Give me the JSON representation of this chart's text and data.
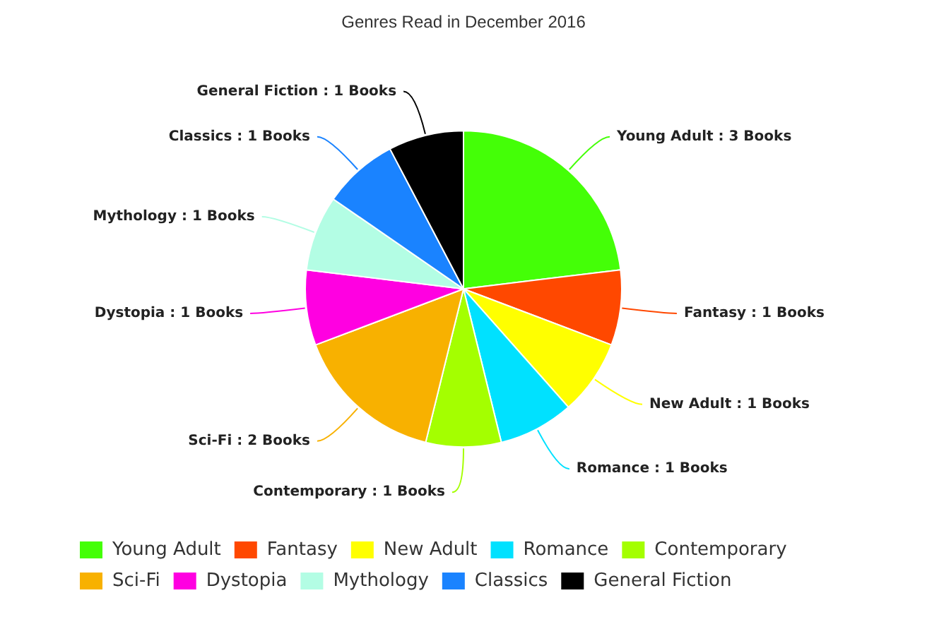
{
  "chart_data": {
    "type": "pie",
    "title": "Genres Read in December 2016",
    "categories": [
      "Young Adult",
      "Fantasy",
      "New Adult",
      "Romance",
      "Contemporary",
      "Sci-Fi",
      "Dystopia",
      "Mythology",
      "Classics",
      "General Fiction"
    ],
    "values": [
      3,
      1,
      1,
      1,
      1,
      2,
      1,
      1,
      1,
      1
    ],
    "colors": [
      "#44ff07",
      "#ff4800",
      "#ffff00",
      "#00e1ff",
      "#a4ff00",
      "#f8b100",
      "#ff00e1",
      "#b3fde4",
      "#1a83ff",
      "#000000"
    ],
    "value_labels": [
      "Young Adult : 3 Books",
      "Fantasy : 1 Books",
      "New Adult : 1 Books",
      "Romance : 1 Books",
      "Contemporary : 1 Books",
      "Sci-Fi : 2 Books",
      "Dystopia : 1 Books",
      "Mythology : 1 Books",
      "Classics : 1 Books",
      "General Fiction : 1 Books"
    ],
    "legend": "bottom"
  }
}
